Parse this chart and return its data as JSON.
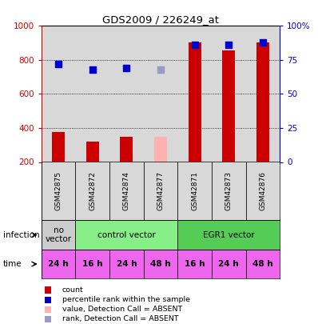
{
  "title": "GDS2009 / 226249_at",
  "samples": [
    "GSM42875",
    "GSM42872",
    "GSM42874",
    "GSM42877",
    "GSM42871",
    "GSM42873",
    "GSM42876"
  ],
  "bar_values": [
    375,
    320,
    350,
    350,
    905,
    855,
    905
  ],
  "bar_colors": [
    "#cc0000",
    "#cc0000",
    "#cc0000",
    "#ffb0b0",
    "#cc0000",
    "#cc0000",
    "#cc0000"
  ],
  "rank_values": [
    72,
    68,
    69,
    68,
    86,
    86,
    88
  ],
  "rank_colors": [
    "#0000cc",
    "#0000cc",
    "#0000cc",
    "#9999cc",
    "#0000cc",
    "#0000cc",
    "#0000cc"
  ],
  "ylim_left": [
    200,
    1000
  ],
  "ylim_right": [
    0,
    100
  ],
  "yticks_left": [
    200,
    400,
    600,
    800,
    1000
  ],
  "yticks_right": [
    0,
    25,
    50,
    75,
    100
  ],
  "infection_groups": [
    {
      "label": "no\nvector",
      "start": 0,
      "end": 1,
      "color": "#cccccc"
    },
    {
      "label": "control vector",
      "start": 1,
      "end": 4,
      "color": "#88ee88"
    },
    {
      "label": "EGR1 vector",
      "start": 4,
      "end": 7,
      "color": "#55cc55"
    }
  ],
  "time_labels": [
    "24 h",
    "16 h",
    "24 h",
    "48 h",
    "16 h",
    "24 h",
    "48 h"
  ],
  "time_color": "#ee66ee",
  "plot_bg": "#d8d8d8",
  "left_axis_color": "#cc0000",
  "right_axis_color": "#0000cc",
  "legend_items": [
    {
      "color": "#cc0000",
      "label": "count"
    },
    {
      "color": "#0000cc",
      "label": "percentile rank within the sample"
    },
    {
      "color": "#ffb0b0",
      "label": "value, Detection Call = ABSENT"
    },
    {
      "color": "#9999cc",
      "label": "rank, Detection Call = ABSENT"
    }
  ]
}
